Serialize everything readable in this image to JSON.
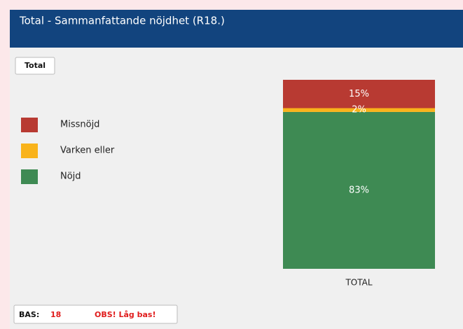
{
  "chart_data": {
    "type": "stacked_bar",
    "title": "Total - Sammanfattande nöjdhet (R18.)",
    "categories": [
      "TOTAL"
    ],
    "series": [
      {
        "name": "Missnöjd",
        "color": "#b83a32",
        "values": [
          15
        ],
        "value_labels": [
          "15%"
        ]
      },
      {
        "name": "Varken eller",
        "color": "#f9b31b",
        "values": [
          2
        ],
        "value_labels": [
          "2%"
        ]
      },
      {
        "name": "Nöjd",
        "color": "#3e8a53",
        "values": [
          83
        ],
        "value_labels": [
          "83%"
        ]
      }
    ],
    "ylim": [
      0,
      100
    ]
  },
  "filter_button": "Total",
  "base": {
    "label": "BAS:",
    "value": 18,
    "warning": "OBS! Låg bas!"
  }
}
